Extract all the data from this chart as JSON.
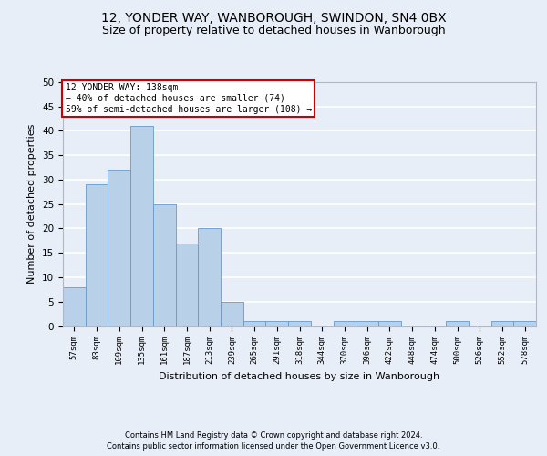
{
  "title1": "12, YONDER WAY, WANBOROUGH, SWINDON, SN4 0BX",
  "title2": "Size of property relative to detached houses in Wanborough",
  "xlabel": "Distribution of detached houses by size in Wanborough",
  "ylabel": "Number of detached properties",
  "categories": [
    "57sqm",
    "83sqm",
    "109sqm",
    "135sqm",
    "161sqm",
    "187sqm",
    "213sqm",
    "239sqm",
    "265sqm",
    "291sqm",
    "318sqm",
    "344sqm",
    "370sqm",
    "396sqm",
    "422sqm",
    "448sqm",
    "474sqm",
    "500sqm",
    "526sqm",
    "552sqm",
    "578sqm"
  ],
  "values": [
    8,
    29,
    32,
    41,
    25,
    17,
    20,
    5,
    1,
    1,
    1,
    0,
    1,
    1,
    1,
    0,
    0,
    1,
    0,
    1,
    1
  ],
  "bar_color": "#b8d0e8",
  "bar_edge_color": "#6699cc",
  "annotation_box_color": "#ffffff",
  "annotation_box_edge": "#cc0000",
  "annotation_lines": [
    "12 YONDER WAY: 138sqm",
    "← 40% of detached houses are smaller (74)",
    "59% of semi-detached houses are larger (108) →"
  ],
  "ylim": [
    0,
    50
  ],
  "yticks": [
    0,
    5,
    10,
    15,
    20,
    25,
    30,
    35,
    40,
    45,
    50
  ],
  "footer1": "Contains HM Land Registry data © Crown copyright and database right 2024.",
  "footer2": "Contains public sector information licensed under the Open Government Licence v3.0.",
  "background_color": "#e8eef8",
  "plot_bg_color": "#e8eef8",
  "grid_color": "#ffffff",
  "title1_fontsize": 10,
  "title2_fontsize": 9,
  "xlabel_fontsize": 8,
  "ylabel_fontsize": 8
}
